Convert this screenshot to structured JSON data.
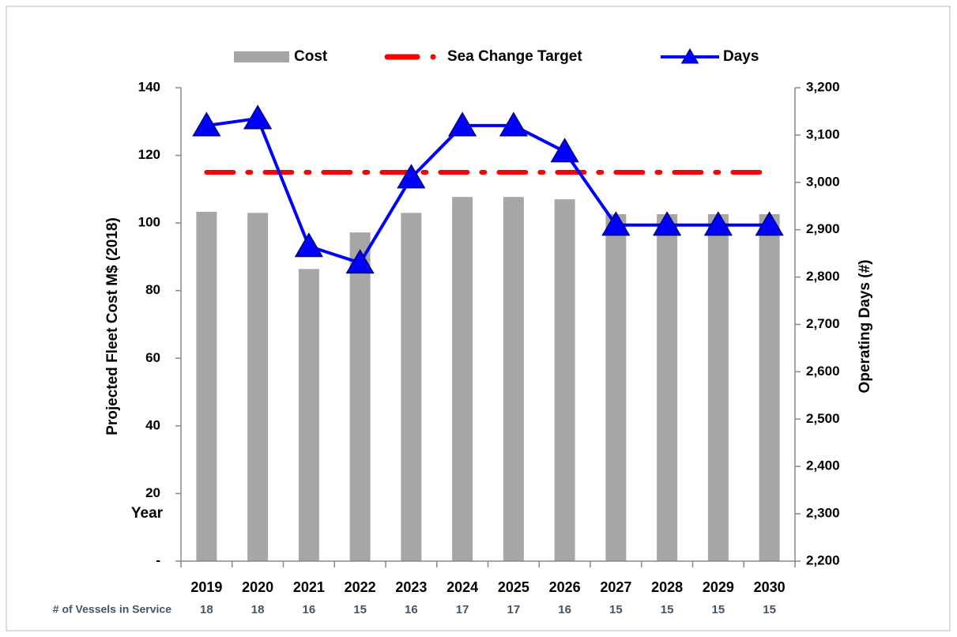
{
  "chart_data": {
    "type": "bar",
    "categories": [
      "2019",
      "2020",
      "2021",
      "2022",
      "2023",
      "2024",
      "2025",
      "2026",
      "2027",
      "2028",
      "2029",
      "2030"
    ],
    "series": [
      {
        "name": "Cost",
        "color": "#a6a6a6",
        "values": [
          103.3,
          103,
          86.4,
          97.2,
          103,
          107.7,
          107.7,
          107,
          102.6,
          102.6,
          102.6,
          102.6
        ]
      },
      {
        "name": "Sea Change Target",
        "color": "#ff0000",
        "type": "line",
        "values": [
          115,
          115,
          115,
          115,
          115,
          115,
          115,
          115,
          115,
          115,
          115,
          115
        ]
      },
      {
        "name": "Days",
        "color": "#0000ff",
        "type": "line",
        "axis": "y2",
        "values": [
          3120,
          3135,
          2865,
          2830,
          3010,
          3120,
          3120,
          3065,
          2910,
          2910,
          2910,
          2910
        ]
      }
    ],
    "ylabel": "Projected Fleet Cost M$ (2018)",
    "y2label": "Operating Days (#)",
    "ylim": [
      0,
      140
    ],
    "yticks": [
      {
        "value": 0,
        "label": "-"
      },
      20,
      40,
      60,
      80,
      100,
      120,
      140
    ],
    "y2lim": [
      2200,
      3200
    ],
    "y2ticks": [
      {
        "value": 2200,
        "label": "2,200"
      },
      {
        "value": 2300,
        "label": "2,300"
      },
      {
        "value": 2400,
        "label": "2,400"
      },
      {
        "value": 2500,
        "label": "2,500"
      },
      {
        "value": 2600,
        "label": "2,600"
      },
      {
        "value": 2700,
        "label": "2,700"
      },
      {
        "value": 2800,
        "label": "2,800"
      },
      {
        "value": 2900,
        "label": "2,900"
      },
      {
        "value": 3000,
        "label": "3,000"
      },
      {
        "value": 3100,
        "label": "3,100"
      },
      {
        "value": 3200,
        "label": "3,200"
      }
    ],
    "annotation": "Year",
    "vessels_label": "# of Vessels in Service",
    "vessels": [
      18,
      18,
      16,
      15,
      16,
      17,
      17,
      16,
      15,
      15,
      15,
      15
    ],
    "legend": "top"
  }
}
